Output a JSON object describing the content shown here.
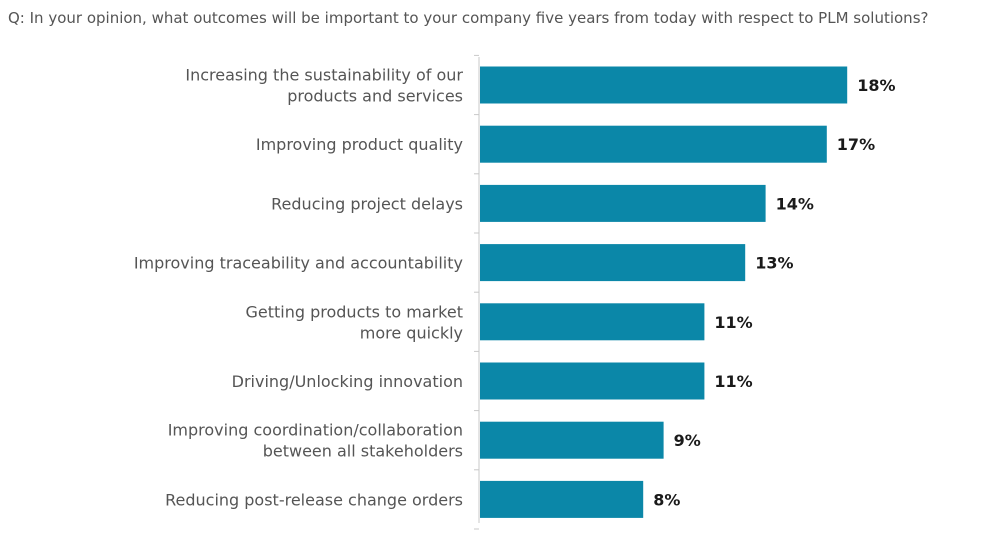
{
  "question": "Q: In your opinion, what outcomes will be important to your company five years from today with respect to PLM solutions?",
  "colors": {
    "bar": "#0b87a8",
    "axis": "#c8c8c8",
    "label": "#555555",
    "value": "#1a1a1a"
  },
  "chart_data": {
    "type": "bar",
    "orientation": "horizontal",
    "categories": [
      [
        "Increasing the sustainability of our",
        "products and services"
      ],
      [
        "Improving product quality"
      ],
      [
        "Reducing project delays"
      ],
      [
        "Improving traceability and accountability"
      ],
      [
        "Getting products to market",
        "more quickly"
      ],
      [
        "Driving/Unlocking innovation"
      ],
      [
        "Improving coordination/collaboration",
        "between all stakeholders"
      ],
      [
        "Reducing post-release change orders"
      ]
    ],
    "values": [
      18,
      17,
      14,
      13,
      11,
      11,
      9,
      8
    ],
    "value_labels": [
      "18%",
      "17%",
      "14%",
      "13%",
      "11%",
      "11%",
      "9%",
      "8%"
    ],
    "unit": "%",
    "grid": false,
    "legend": "none"
  }
}
